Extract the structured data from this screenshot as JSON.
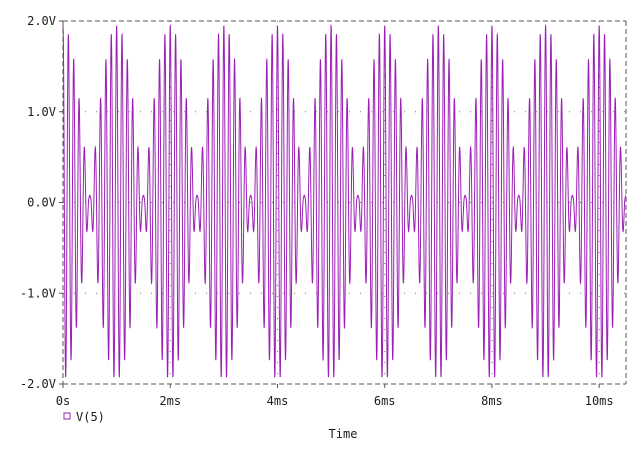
{
  "chart_data": {
    "type": "line",
    "title": "",
    "xlabel": "Time",
    "ylabel": "",
    "xlim": [
      0,
      10.5
    ],
    "ylim": [
      -2.0,
      2.0
    ],
    "x_unit": "ms",
    "x_ticks": [
      {
        "value": 0,
        "label": "0s"
      },
      {
        "value": 2,
        "label": "2ms"
      },
      {
        "value": 4,
        "label": "4ms"
      },
      {
        "value": 6,
        "label": "6ms"
      },
      {
        "value": 8,
        "label": "8ms"
      },
      {
        "value": 10,
        "label": "10ms"
      }
    ],
    "y_ticks": [
      {
        "value": 2.0,
        "label": "2.0V"
      },
      {
        "value": 1.0,
        "label": "1.0V"
      },
      {
        "value": 0.0,
        "label": "0.0V"
      },
      {
        "value": -1.0,
        "label": "-1.0V"
      },
      {
        "value": -2.0,
        "label": "-2.0V"
      }
    ],
    "grid": "dotted",
    "legend_position": "bottom-left",
    "series": [
      {
        "name": "V(5)",
        "color": "#9b1fb5",
        "signal": "amplitude-modulated sinusoid (suppressed carrier)",
        "carrier_frequency_khz": 10,
        "envelope_frequency_khz": 0.5,
        "peak_amplitude_v": 1.95,
        "residual_amplitude_v": 0.08
      }
    ]
  }
}
